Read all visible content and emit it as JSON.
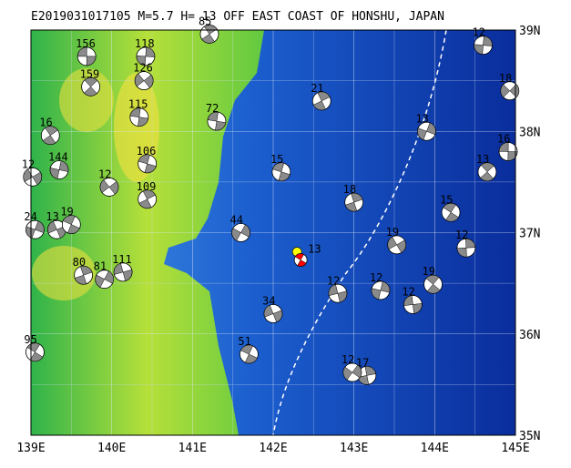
{
  "title": "E2019031017105 M=5.7 H= 13 OFF EAST COAST OF HONSHU, JAPAN",
  "xlim": [
    139,
    145
  ],
  "ylim": [
    35,
    39
  ],
  "xticks": [
    {
      "value": 139,
      "label": "139E"
    },
    {
      "value": 140,
      "label": "140E"
    },
    {
      "value": 141,
      "label": "141E"
    },
    {
      "value": 142,
      "label": "142E"
    },
    {
      "value": 143,
      "label": "143E"
    },
    {
      "value": 144,
      "label": "144E"
    },
    {
      "value": 145,
      "label": "145E"
    }
  ],
  "yticks": [
    {
      "value": 35,
      "label": "35N"
    },
    {
      "value": 36,
      "label": "36N"
    },
    {
      "value": 37,
      "label": "37N"
    },
    {
      "value": 38,
      "label": "38N"
    },
    {
      "value": 39,
      "label": "39N"
    }
  ],
  "main_event": {
    "lon": 142.34,
    "lat": 36.73,
    "depth": 13,
    "color": "#ff0000"
  },
  "events": [
    {
      "lon": 139.69,
      "lat": 38.74,
      "depth": 156
    },
    {
      "lon": 139.74,
      "lat": 38.44,
      "depth": 159
    },
    {
      "lon": 140.42,
      "lat": 38.74,
      "depth": 118
    },
    {
      "lon": 140.4,
      "lat": 38.5,
      "depth": 126
    },
    {
      "lon": 140.34,
      "lat": 38.14,
      "depth": 115
    },
    {
      "lon": 139.24,
      "lat": 37.96,
      "depth": 16
    },
    {
      "lon": 139.35,
      "lat": 37.62,
      "depth": 144
    },
    {
      "lon": 139.02,
      "lat": 37.55,
      "depth": 12
    },
    {
      "lon": 140.44,
      "lat": 37.68,
      "depth": 106
    },
    {
      "lon": 140.44,
      "lat": 37.33,
      "depth": 109
    },
    {
      "lon": 139.05,
      "lat": 37.03,
      "depth": 24
    },
    {
      "lon": 139.32,
      "lat": 37.03,
      "depth": 13
    },
    {
      "lon": 139.5,
      "lat": 37.08,
      "depth": 19
    },
    {
      "lon": 139.65,
      "lat": 36.58,
      "depth": 80
    },
    {
      "lon": 139.91,
      "lat": 36.54,
      "depth": 81
    },
    {
      "lon": 140.14,
      "lat": 36.61,
      "depth": 111
    },
    {
      "lon": 139.05,
      "lat": 35.82,
      "depth": 95
    },
    {
      "lon": 143.16,
      "lat": 35.59,
      "depth": 17
    },
    {
      "lon": 142.98,
      "lat": 35.62,
      "depth": 12
    },
    {
      "lon": 143.73,
      "lat": 36.29,
      "depth": 12
    },
    {
      "lon": 143.98,
      "lat": 36.49,
      "depth": 19
    },
    {
      "lon": 144.39,
      "lat": 36.85,
      "depth": 12
    },
    {
      "lon": 144.93,
      "lat": 38.4,
      "depth": 18
    },
    {
      "lon": 144.91,
      "lat": 37.8,
      "depth": 16
    },
    {
      "lon": 144.65,
      "lat": 37.6,
      "depth": 13
    },
    {
      "lon": 144.6,
      "lat": 38.85,
      "depth": 12
    },
    {
      "lon": 139.97,
      "lat": 37.45,
      "depth": 12
    },
    {
      "lon": 141.3,
      "lat": 38.1,
      "depth": 72
    },
    {
      "lon": 141.21,
      "lat": 38.96,
      "depth": 85
    },
    {
      "lon": 143.33,
      "lat": 36.43,
      "depth": 12
    },
    {
      "lon": 143.53,
      "lat": 36.88,
      "depth": 19
    },
    {
      "lon": 142.1,
      "lat": 37.6,
      "depth": 15
    },
    {
      "lon": 142.6,
      "lat": 38.3,
      "depth": 21
    },
    {
      "lon": 143.9,
      "lat": 38.0,
      "depth": 13
    },
    {
      "lon": 142.0,
      "lat": 36.2,
      "depth": 34
    },
    {
      "lon": 141.7,
      "lat": 35.8,
      "depth": 51
    },
    {
      "lon": 143.0,
      "lat": 37.3,
      "depth": 18
    },
    {
      "lon": 141.6,
      "lat": 37.0,
      "depth": 44
    },
    {
      "lon": 142.8,
      "lat": 36.4,
      "depth": 12
    },
    {
      "lon": 144.2,
      "lat": 37.2,
      "depth": 15
    }
  ]
}
